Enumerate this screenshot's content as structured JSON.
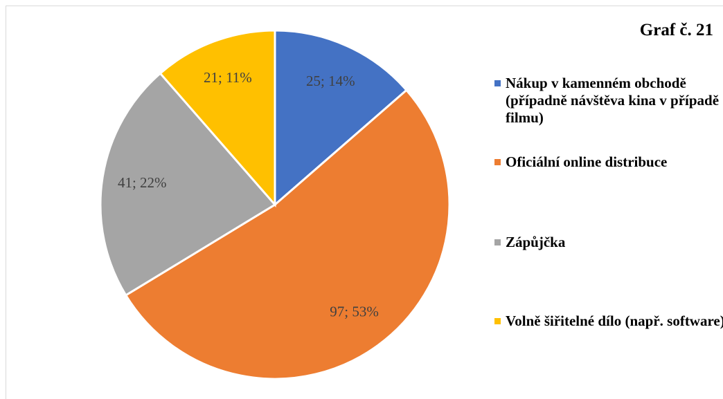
{
  "chart_data": {
    "type": "pie",
    "title": "Graf č. 21",
    "categories": [
      "Nákup v kamenném obchodě (případně návštěva kina v případě filmu)",
      "Oficiální online distribuce",
      "Zápůjčka",
      "Volně šiřitelné dílo (např. software)"
    ],
    "values": [
      25,
      97,
      41,
      21
    ],
    "value_labels": [
      "25; 14%",
      "97; 53%",
      "41; 22%",
      "21; 11%"
    ],
    "colors": [
      "#4472c4",
      "#ed7d31",
      "#a5a5a5",
      "#ffc000"
    ],
    "legend": "right"
  }
}
